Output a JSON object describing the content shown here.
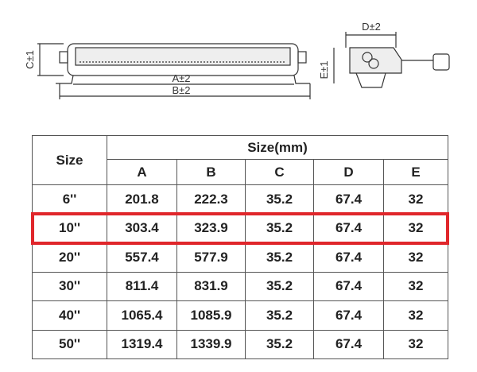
{
  "drawing": {
    "labels": {
      "a": "A±2",
      "b": "B±2",
      "c": "C±1",
      "d": "D±2",
      "e": "E±1"
    }
  },
  "table": {
    "corner": "Size",
    "group_header": "Size(mm)",
    "columns": [
      "A",
      "B",
      "C",
      "D",
      "E"
    ],
    "rows": [
      [
        "6''",
        201.8,
        222.3,
        35.2,
        67.4,
        32
      ],
      [
        "10''",
        303.4,
        323.9,
        35.2,
        67.4,
        32
      ],
      [
        "20''",
        557.4,
        577.9,
        35.2,
        67.4,
        32
      ],
      [
        "30''",
        811.4,
        831.9,
        35.2,
        67.4,
        32
      ],
      [
        "40''",
        1065.4,
        1085.9,
        35.2,
        67.4,
        32
      ],
      [
        "50''",
        1319.4,
        1339.9,
        35.2,
        67.4,
        32
      ]
    ],
    "highlight_row": 1
  }
}
